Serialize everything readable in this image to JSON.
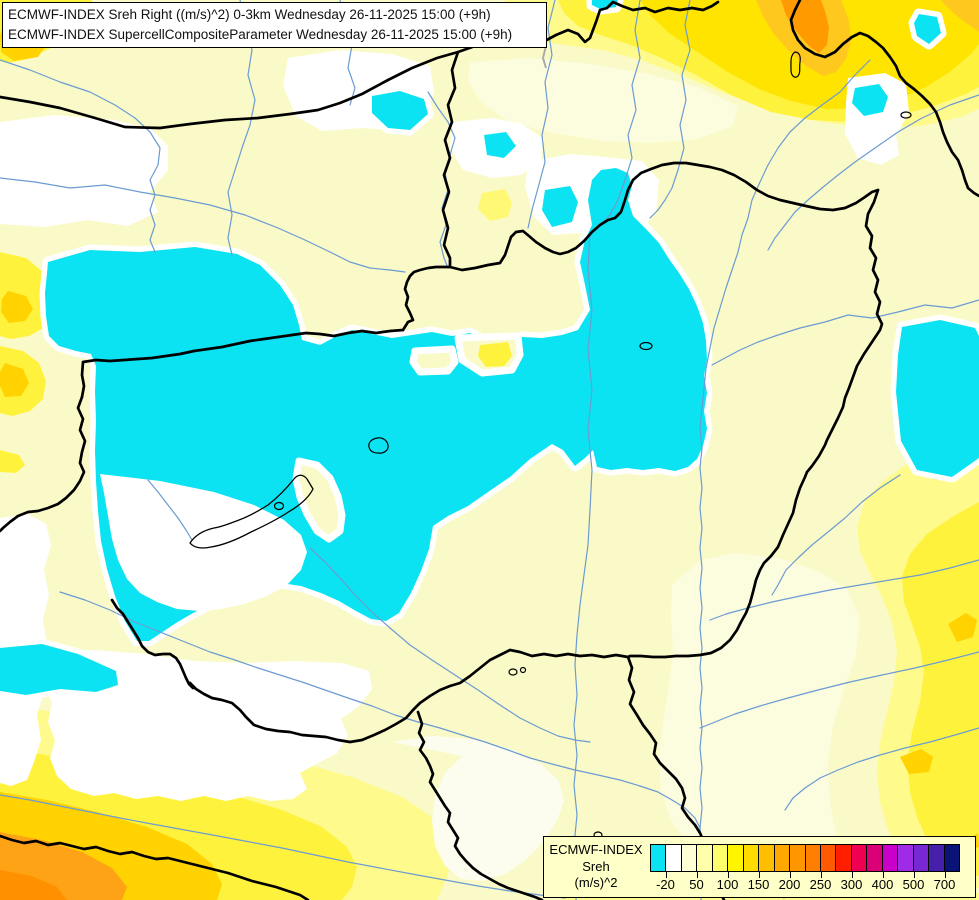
{
  "title": {
    "line1": "ECMWF-INDEX Sreh Right ((m/s)^2) 0-3km Wednesday 26-11-2025 15:00 (+9h)",
    "line2": "ECMWF-INDEX SupercellCompositeParameter Wednesday 26-11-2025 15:00 (+9h)"
  },
  "legend": {
    "title": "ECMWF-INDEX",
    "param": "Sreh",
    "unit": "(m/s)^2",
    "tick_labels": [
      "-20",
      "50",
      "100",
      "150",
      "200",
      "250",
      "300",
      "400",
      "500",
      "700"
    ],
    "cell_colors": [
      "#0CE3F2",
      "#FFFFFF",
      "#FFFFD5",
      "#FFFFAA",
      "#FFFF6E",
      "#FFF500",
      "#FFDC00",
      "#FFBE00",
      "#FFA800",
      "#FF9600",
      "#FF7D00",
      "#FF5A00",
      "#FF1E00",
      "#F00050",
      "#DC0078",
      "#C800C8",
      "#A02BE6",
      "#7828D2",
      "#4620AA",
      "#0A1478"
    ]
  },
  "map_colors": {
    "background_pale_yellow": "#FAFAC8",
    "cream": "#FCFCDF",
    "white_band": "#FFFFFF",
    "light_yellow": "#FFFA8C",
    "yellow": "#FFF23C",
    "bright_yellow": "#FFE400",
    "gold": "#FFD200",
    "amber": "#FFC81E",
    "orange": "#FFA316",
    "deep_orange": "#FF9100",
    "negative_cyan": "#0CE3F2",
    "river_blue": "#6B9BD2",
    "border_black": "#000000"
  }
}
